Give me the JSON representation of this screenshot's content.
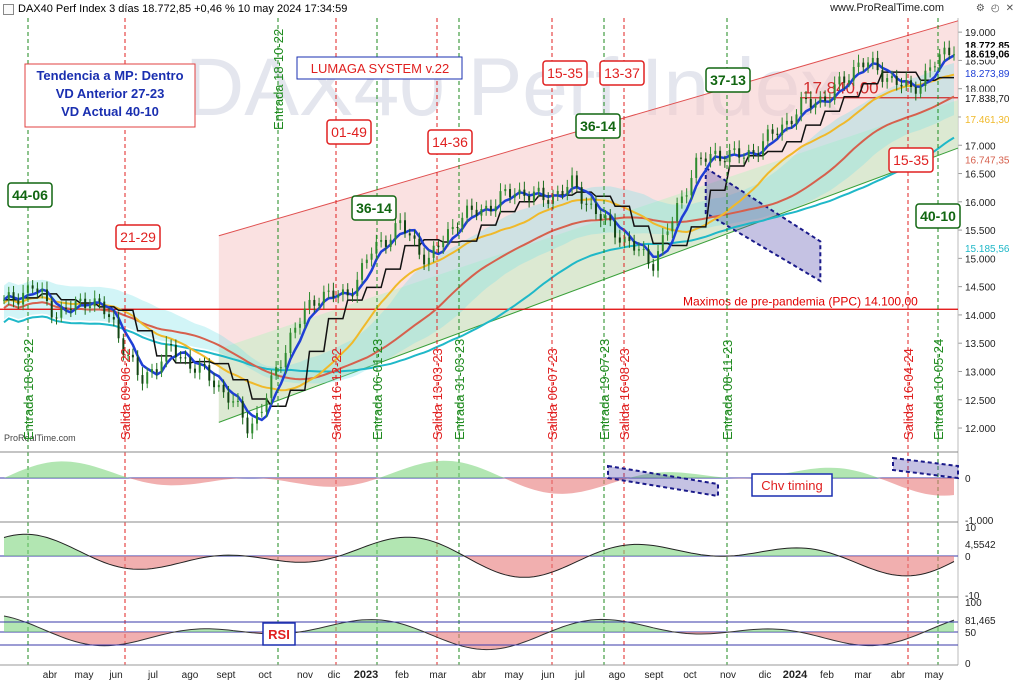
{
  "header": {
    "title": "DAX40 Perf Index 3 días 18.772,85 +0,46 % 10 may 2024 17:34:59",
    "source": "www.ProRealTime.com",
    "icons": [
      "settings-icon",
      "clock-icon",
      "close-icon"
    ]
  },
  "watermark": "DAX40 Perf Index",
  "logo": "ProRealTime.com",
  "colors": {
    "bull": "#2e8b2e",
    "bear": "#d12b2b",
    "blue_line": "#1f3fd6",
    "black_line": "#111111",
    "yellow_line": "#f0b92a",
    "salmon_line": "#d6604d",
    "teal_line": "#1fb8c8",
    "channel_fill": "#f6c9c9",
    "cloud_green": "#8fe08f",
    "cloud_red": "#f08080",
    "ppc_line": "#e00000"
  },
  "chart_data": {
    "type": "line",
    "title": "DAX40 Perf Index 3 días",
    "ylim": [
      11700,
      19250
    ],
    "y_ticks": [
      "19.000",
      "18.500",
      "18.000",
      "17.500",
      "17.000",
      "16.500",
      "16.000",
      "15.500",
      "15.000",
      "14.500",
      "14.000",
      "13.500",
      "13.000",
      "12.500",
      "12.000"
    ],
    "x_month_labels": [
      "abr",
      "may",
      "jun",
      "jul",
      "ago",
      "sept",
      "oct",
      "nov",
      "dic",
      "2023",
      "feb",
      "mar",
      "abr",
      "may",
      "jun",
      "jul",
      "ago",
      "sept",
      "oct",
      "nov",
      "dic",
      "2024",
      "feb",
      "mar",
      "abr",
      "may"
    ],
    "x_years": [
      "2023",
      "2024"
    ],
    "price_labels": [
      {
        "text": "18.772,85",
        "value": 18772.85,
        "color": "#000000",
        "bold": true
      },
      {
        "text": "18.619,06",
        "value": 18619.06,
        "color": "#000000",
        "bold": true
      },
      {
        "text": "18.273,89",
        "value": 18273.89,
        "color": "#1f3fd6"
      },
      {
        "text": "17.838,70",
        "value": 17838.7,
        "color": "#111111"
      },
      {
        "text": "17.461,30",
        "value": 17461.3,
        "color": "#f0b92a"
      },
      {
        "text": "16.747,35",
        "value": 16747.35,
        "color": "#d6604d"
      },
      {
        "text": "15.185,56",
        "value": 15185.56,
        "color": "#1fb8c8"
      }
    ],
    "horizontal_lines": [
      {
        "label": "Maximos de pre-pandemia (PPC) 14.100,00",
        "value": 14100,
        "color": "#e00000"
      },
      {
        "label": "17.840,00",
        "value": 17840,
        "color": "#d12b2b"
      }
    ],
    "info_box": [
      "Tendencia a MP: Dentro",
      "VD Anterior 27-23",
      "VD Actual 40-10"
    ],
    "system_label": "LUMAGA SYSTEM v.22",
    "score_boxes": [
      {
        "text": "44-06",
        "color": "green"
      },
      {
        "text": "21-29",
        "color": "red"
      },
      {
        "text": "36-14",
        "color": "green"
      },
      {
        "text": "01-49",
        "color": "red"
      },
      {
        "text": "14-36",
        "color": "red"
      },
      {
        "text": "15-35",
        "color": "red"
      },
      {
        "text": "13-37",
        "color": "red"
      },
      {
        "text": "36-14",
        "color": "green"
      },
      {
        "text": "37-13",
        "color": "green"
      },
      {
        "text": "15-35",
        "color": "red"
      },
      {
        "text": "40-10",
        "color": "green"
      }
    ],
    "signals": [
      {
        "text": "Entrada 18-03-22",
        "type": "entry"
      },
      {
        "text": "Salida 09-06-22",
        "type": "exit"
      },
      {
        "text": "Entrada 18-10-22",
        "type": "entry"
      },
      {
        "text": "Salida 16-12-22",
        "type": "exit"
      },
      {
        "text": "Entrada 06-01-23",
        "type": "entry"
      },
      {
        "text": "Salida 13-03-23",
        "type": "exit"
      },
      {
        "text": "Entrada 31-03-23",
        "type": "entry"
      },
      {
        "text": "Salida 06-07-23",
        "type": "exit"
      },
      {
        "text": "Entrada 19-07-23",
        "type": "entry"
      },
      {
        "text": "Salida 16-08-23",
        "type": "exit"
      },
      {
        "text": "Entrada 08-11-23",
        "type": "entry"
      },
      {
        "text": "Salida 16-04-24",
        "type": "exit"
      },
      {
        "text": "Entrada 10-05-24",
        "type": "entry"
      }
    ],
    "series": [
      {
        "name": "Precio",
        "color": "#2e8b2e"
      },
      {
        "name": "Media azul",
        "color": "#1f3fd6",
        "last": 18273.89
      },
      {
        "name": "Media negra",
        "color": "#111111",
        "last": 17838.7
      },
      {
        "name": "Media amarilla",
        "color": "#f0b92a",
        "last": 17461.3
      },
      {
        "name": "Media salmón",
        "color": "#d6604d",
        "last": 16747.35
      },
      {
        "name": "Media turquesa",
        "color": "#1fb8c8",
        "last": 15185.56
      }
    ],
    "indicators": [
      {
        "label": "Chv timing",
        "ticks": [
          "0",
          "-1.000"
        ]
      },
      {
        "ticks": [
          "10",
          "0",
          "-10"
        ],
        "last_text": "4,5542",
        "last": 4.5542
      },
      {
        "label": "RSI",
        "ticks": [
          "100",
          "50",
          "0"
        ],
        "last_text": "81,465",
        "last": 81.465
      }
    ]
  }
}
